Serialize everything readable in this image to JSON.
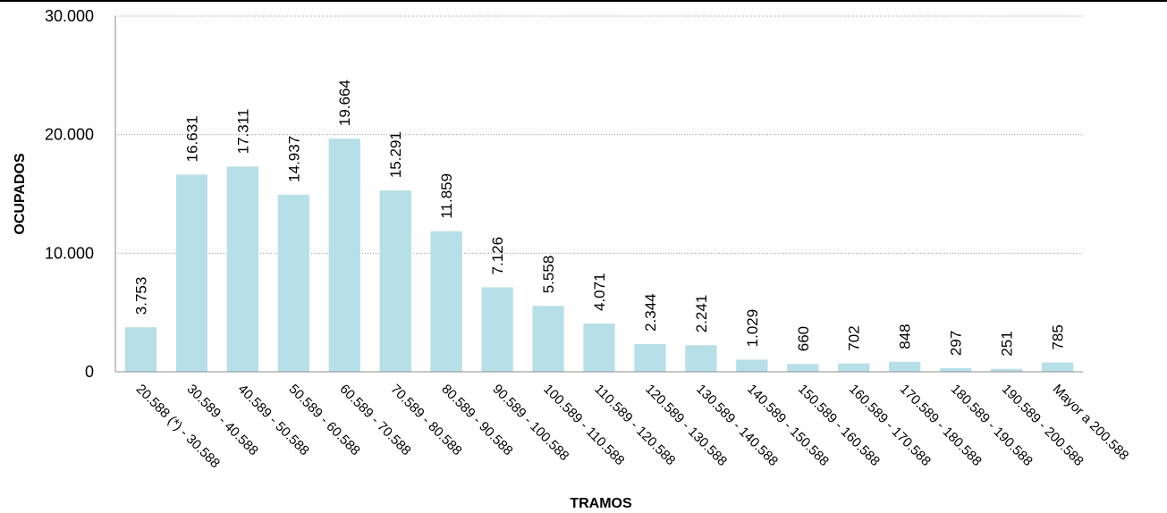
{
  "chart_data": {
    "type": "bar",
    "title": "",
    "xlabel": "TRAMOS",
    "ylabel": "OCUPADOS",
    "ylim": [
      0,
      30000
    ],
    "yticks": [
      0,
      10000,
      20000,
      30000
    ],
    "ytick_labels": [
      "0",
      "10.000",
      "20.000",
      "30.000"
    ],
    "grid": true,
    "legend": "none",
    "bar_color": "#b7dfe8",
    "categories": [
      "20.588 (*) - 30.588",
      "30.589 - 40.588",
      "40.589 - 50.588",
      "50.589 - 60.588",
      "60.589 - 70.588",
      "70.589 - 80.588",
      "80.589 - 90.588",
      "90.589 - 100.588",
      "100.589 - 110.588",
      "110.589 - 120.588",
      "120.589 - 130.588",
      "130.589 - 140.588",
      "140.589 - 150.588",
      "150.589 - 160.588",
      "160.589 - 170.588",
      "170.589 - 180.588",
      "180.589 - 190.588",
      "190.589 - 200.588",
      "Mayor a 200.588"
    ],
    "values": [
      3753,
      16631,
      17311,
      14937,
      19664,
      15291,
      11859,
      7126,
      5558,
      4071,
      2344,
      2241,
      1029,
      660,
      702,
      848,
      297,
      251,
      785
    ],
    "value_labels": [
      "3.753",
      "16.631",
      "17.311",
      "14.937",
      "19.664",
      "15.291",
      "11.859",
      "7.126",
      "5.558",
      "4.071",
      "2.344",
      "2.241",
      "1.029",
      "660",
      "702",
      "848",
      "297",
      "251",
      "785"
    ]
  }
}
